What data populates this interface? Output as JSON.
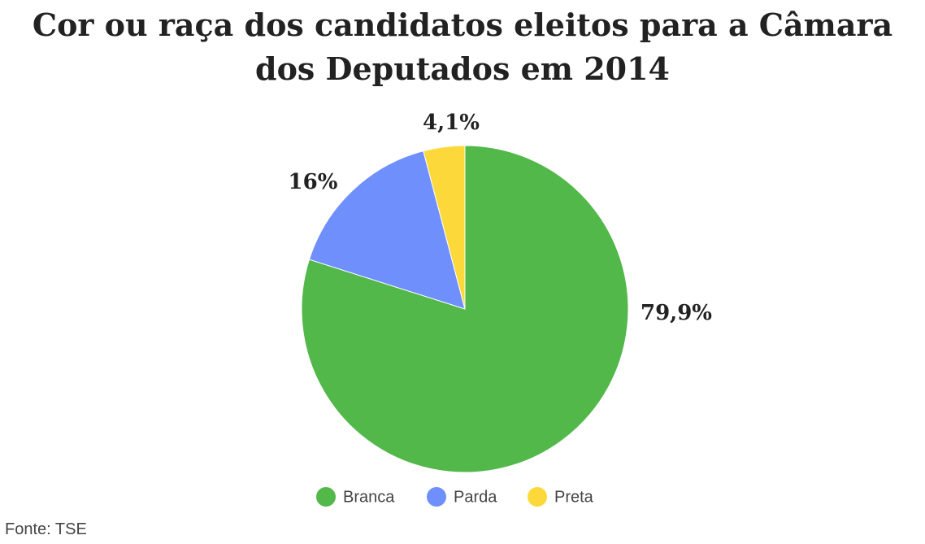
{
  "chart_data": {
    "type": "pie",
    "title": "Cor ou raça dos candidatos eleitos para a Câmara dos Deputados em 2014",
    "categories": [
      "Branca",
      "Parda",
      "Preta"
    ],
    "values": [
      79.9,
      16,
      4.1
    ],
    "value_labels": [
      "79,9%",
      "16%",
      "4,1%"
    ],
    "colors": [
      "#52b84a",
      "#6f8ffd",
      "#fdd83a"
    ],
    "legend": "bottom",
    "source": "Fonte: TSE"
  }
}
